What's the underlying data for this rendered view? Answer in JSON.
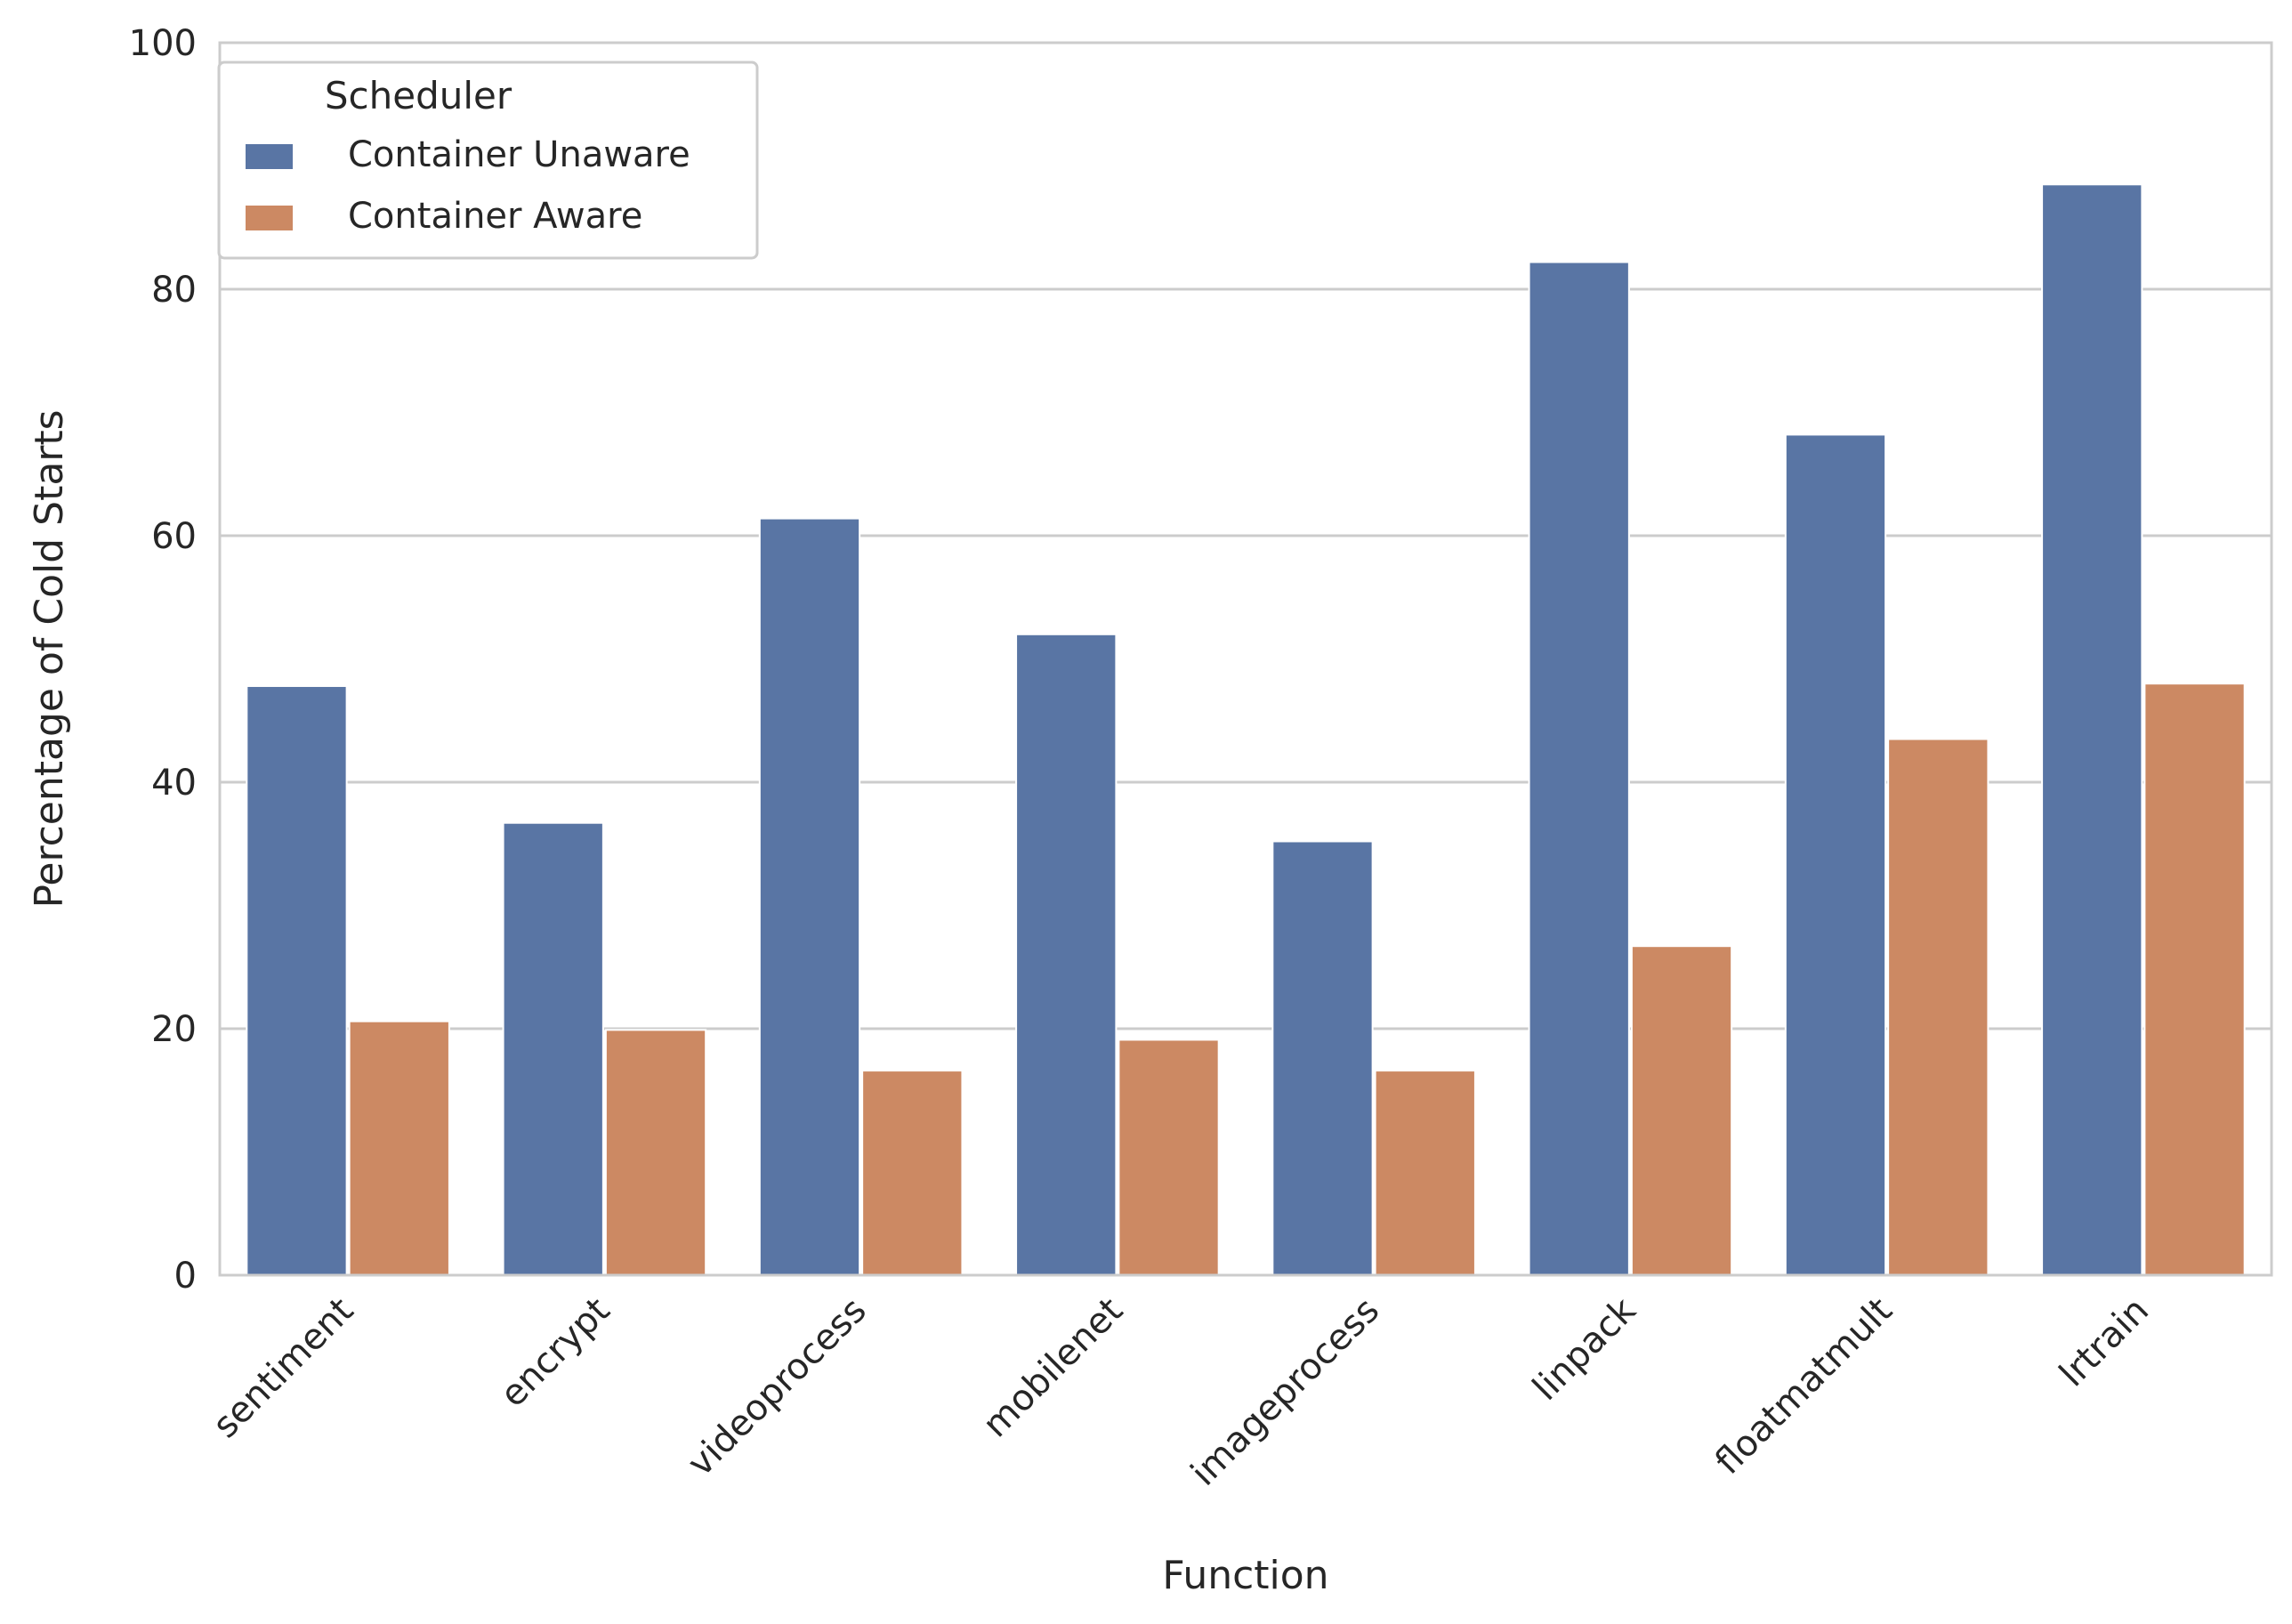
{
  "chart_data": {
    "type": "bar",
    "xlabel": "Function",
    "ylabel": "Percentage of Cold Starts",
    "ylim": [
      0,
      100
    ],
    "yticks": [
      0,
      20,
      40,
      60,
      80,
      100
    ],
    "ytick_labels": [
      "0",
      "20",
      "40",
      "60",
      "80",
      "100"
    ],
    "grid": "y",
    "legend": {
      "title": "Scheduler",
      "placement": "top-left"
    },
    "categories": [
      "sentiment",
      "encrypt",
      "videoprocess",
      "mobilenet",
      "imageprocess",
      "linpack",
      "floatmatmult",
      "lrtrain"
    ],
    "series": [
      {
        "name": "Container Unaware",
        "color": "#5975a4",
        "values": [
          47.8,
          36.7,
          61.4,
          52.0,
          35.2,
          82.2,
          68.2,
          88.5
        ]
      },
      {
        "name": "Container Aware",
        "color": "#cc8963",
        "values": [
          20.6,
          19.9,
          16.6,
          19.1,
          16.6,
          26.7,
          43.5,
          48.0
        ]
      }
    ]
  }
}
